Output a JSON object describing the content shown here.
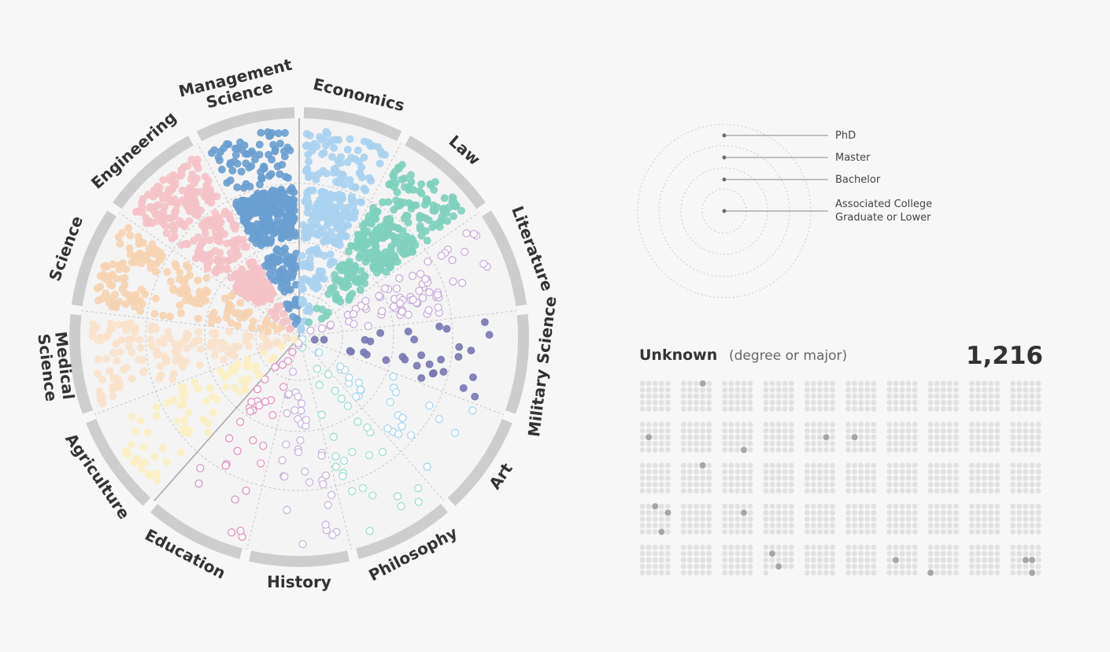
{
  "chart_data": {
    "type": "scatter",
    "chart_form": "radial beeswarm by major (sector) and degree level (ring)",
    "majors": [
      {
        "name": "Management Science",
        "label_lines": [
          "Management",
          "Science"
        ],
        "color": "#6a9fd0",
        "filled": true,
        "counts": [
          14,
          62,
          230,
          70
        ]
      },
      {
        "name": "Economics",
        "label_lines": [
          "Economics"
        ],
        "color": "#a9d2f0",
        "filled": true,
        "counts": [
          10,
          40,
          140,
          80
        ]
      },
      {
        "name": "Law",
        "label_lines": [
          "Law"
        ],
        "color": "#7ed0bd",
        "filled": true,
        "counts": [
          6,
          55,
          150,
          85
        ]
      },
      {
        "name": "Literature",
        "label_lines": [
          "Literature"
        ],
        "color": "#c8acd8",
        "filled": false,
        "counts": [
          4,
          14,
          40,
          12
        ]
      },
      {
        "name": "Military Science",
        "label_lines": [
          "Military Science"
        ],
        "color": "#7878b4",
        "filled": true,
        "counts": [
          2,
          8,
          14,
          8
        ]
      },
      {
        "name": "Art",
        "label_lines": [
          "Art"
        ],
        "color": "#a6d6ee",
        "filled": false,
        "counts": [
          3,
          10,
          12,
          4
        ]
      },
      {
        "name": "Philosophy",
        "label_lines": [
          "Philosophy"
        ],
        "color": "#9edcd0",
        "filled": false,
        "counts": [
          2,
          6,
          12,
          8
        ]
      },
      {
        "name": "History",
        "label_lines": [
          "History"
        ],
        "color": "#c8b4dc",
        "filled": false,
        "counts": [
          3,
          12,
          14,
          8
        ]
      },
      {
        "name": "Education",
        "label_lines": [
          "Education"
        ],
        "color": "#e18fc0",
        "filled": false,
        "counts": [
          4,
          12,
          8,
          7
        ]
      },
      {
        "name": "Agriculture",
        "label_lines": [
          "Agriculture"
        ],
        "color": "#fbf0c2",
        "filled": true,
        "counts": [
          6,
          20,
          28,
          24
        ]
      },
      {
        "name": "Medical Science",
        "label_lines": [
          "Medical",
          "Science"
        ],
        "color": "#f9e2cc",
        "filled": true,
        "counts": [
          8,
          25,
          45,
          60
        ]
      },
      {
        "name": "Science",
        "label_lines": [
          "Science"
        ],
        "color": "#f6d3b0",
        "filled": true,
        "counts": [
          8,
          28,
          40,
          90
        ]
      },
      {
        "name": "Engineering",
        "label_lines": [
          "Engineering"
        ],
        "color": "#f5c2c8",
        "filled": true,
        "counts": [
          12,
          110,
          90,
          130
        ]
      }
    ],
    "degree_levels": [
      "Associated College Graduate or Lower",
      "Bachelor",
      "Master",
      "PhD"
    ],
    "legend": {
      "items": [
        {
          "label_lines": [
            "PhD"
          ]
        },
        {
          "label_lines": [
            "Master"
          ]
        },
        {
          "label_lines": [
            "Bachelor"
          ]
        },
        {
          "label_lines": [
            "Associated College",
            "Graduate or Lower"
          ]
        }
      ],
      "placement": "right-top"
    },
    "unknown": {
      "title": "Unknown",
      "subtitle": "(degree or major)",
      "count_label": "1,216",
      "count": 1216,
      "grid": {
        "block_columns": 10,
        "block_rows": 5,
        "dots_per_block": 25
      },
      "dot_color": "#e1e1e1",
      "highlight_color": "#a6a6a6"
    },
    "colors": {
      "ring_band": "#cdcdcd",
      "guide": "#c4c4c4",
      "divider": "#aaaaaa"
    }
  }
}
